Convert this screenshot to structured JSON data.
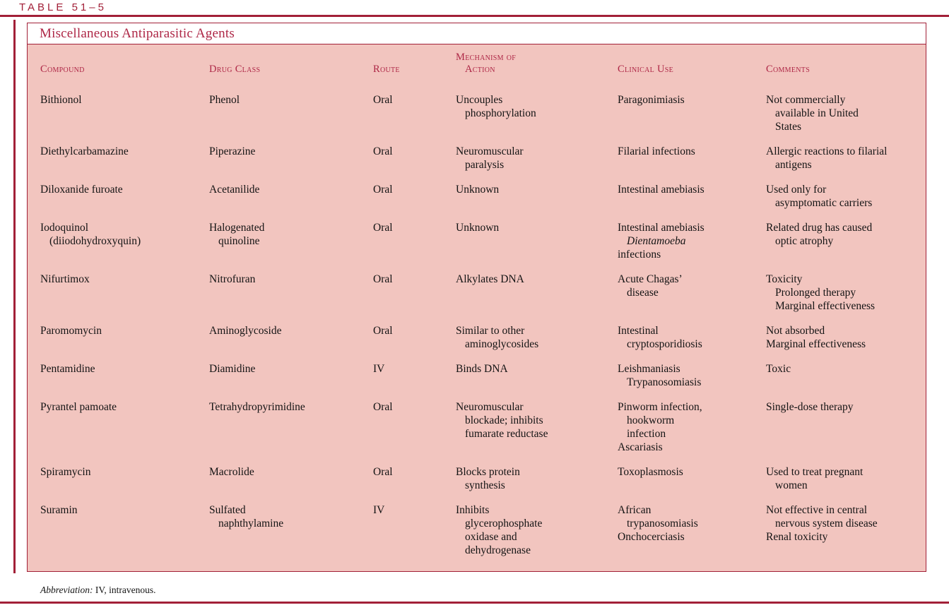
{
  "page": {
    "label": "TABLE 51–5"
  },
  "colors": {
    "accent": "#a22038",
    "header_text": "#ae2746",
    "table_background": "#f2c5bf",
    "body_text": "#141414",
    "page_background": "#ffffff"
  },
  "table": {
    "title": "Miscellaneous Antiparasitic Agents",
    "column_keys": [
      "compound",
      "drug-class",
      "route",
      "mechanism-of-action",
      "clinical-use",
      "comments"
    ],
    "columns": [
      {
        "lines": [
          "Compound"
        ]
      },
      {
        "lines": [
          "Drug Class"
        ]
      },
      {
        "lines": [
          "Route"
        ]
      },
      {
        "lines": [
          "Mechanism of",
          "Action"
        ]
      },
      {
        "lines": [
          "Clinical Use"
        ]
      },
      {
        "lines": [
          "Comments"
        ]
      }
    ],
    "rows": [
      {
        "cells": [
          [
            {
              "text": "Bithionol"
            }
          ],
          [
            {
              "text": "Phenol"
            }
          ],
          [
            {
              "text": "Oral"
            }
          ],
          [
            {
              "text": "Uncouples"
            },
            {
              "text": "phosphorylation",
              "indent": 1
            }
          ],
          [
            {
              "text": "Paragonimiasis"
            }
          ],
          [
            {
              "text": "Not commercially"
            },
            {
              "text": "available in United",
              "indent": 1
            },
            {
              "text": "States",
              "indent": 1
            }
          ]
        ]
      },
      {
        "cells": [
          [
            {
              "text": "Diethylcarbamazine"
            }
          ],
          [
            {
              "text": "Piperazine"
            }
          ],
          [
            {
              "text": "Oral"
            }
          ],
          [
            {
              "text": "Neuromuscular"
            },
            {
              "text": "paralysis",
              "indent": 1
            }
          ],
          [
            {
              "text": "Filarial infections"
            }
          ],
          [
            {
              "text": "Allergic reactions to filarial"
            },
            {
              "text": "antigens",
              "indent": 1
            }
          ]
        ]
      },
      {
        "cells": [
          [
            {
              "text": "Diloxanide furoate"
            }
          ],
          [
            {
              "text": "Acetanilide"
            }
          ],
          [
            {
              "text": "Oral"
            }
          ],
          [
            {
              "text": "Unknown"
            }
          ],
          [
            {
              "text": "Intestinal amebiasis"
            }
          ],
          [
            {
              "text": "Used only for"
            },
            {
              "text": "asymptomatic carriers",
              "indent": 1
            }
          ]
        ]
      },
      {
        "cells": [
          [
            {
              "text": "Iodoquinol"
            },
            {
              "text": "(diiodohydroxyquin)",
              "indent": 1
            }
          ],
          [
            {
              "text": "Halogenated"
            },
            {
              "text": "quinoline",
              "indent": 1
            }
          ],
          [
            {
              "text": "Oral"
            }
          ],
          [
            {
              "text": "Unknown"
            }
          ],
          [
            {
              "text": "Intestinal amebiasis"
            },
            {
              "text": "Dientamoeba",
              "indent": 1,
              "italic": true
            },
            {
              "text": "infections"
            }
          ],
          [
            {
              "text": "Related drug has caused"
            },
            {
              "text": "optic atrophy",
              "indent": 1
            }
          ]
        ]
      },
      {
        "cells": [
          [
            {
              "text": "Nifurtimox"
            }
          ],
          [
            {
              "text": "Nitrofuran"
            }
          ],
          [
            {
              "text": "Oral"
            }
          ],
          [
            {
              "text": "Alkylates DNA"
            }
          ],
          [
            {
              "text": "Acute Chagas’"
            },
            {
              "text": "disease",
              "indent": 1
            }
          ],
          [
            {
              "text": "Toxicity"
            },
            {
              "text": "Prolonged therapy",
              "indent": 1
            },
            {
              "text": "Marginal effectiveness",
              "indent": 1
            }
          ]
        ]
      },
      {
        "cells": [
          [
            {
              "text": "Paromomycin"
            }
          ],
          [
            {
              "text": "Aminoglycoside"
            }
          ],
          [
            {
              "text": "Oral"
            }
          ],
          [
            {
              "text": "Similar to other"
            },
            {
              "text": "aminoglycosides",
              "indent": 1
            }
          ],
          [
            {
              "text": "Intestinal"
            },
            {
              "text": "cryptosporidiosis",
              "indent": 1
            }
          ],
          [
            {
              "text": "Not absorbed"
            },
            {
              "text": "Marginal effectiveness"
            }
          ]
        ]
      },
      {
        "cells": [
          [
            {
              "text": "Pentamidine"
            }
          ],
          [
            {
              "text": "Diamidine"
            }
          ],
          [
            {
              "text": "IV"
            }
          ],
          [
            {
              "text": "Binds DNA"
            }
          ],
          [
            {
              "text": "Leishmaniasis"
            },
            {
              "text": "Trypanosomiasis",
              "indent": 1
            }
          ],
          [
            {
              "text": "Toxic"
            }
          ]
        ]
      },
      {
        "cells": [
          [
            {
              "text": "Pyrantel pamoate"
            }
          ],
          [
            {
              "text": "Tetrahydropyrimidine"
            }
          ],
          [
            {
              "text": "Oral"
            }
          ],
          [
            {
              "text": "Neuromuscular"
            },
            {
              "text": "blockade; inhibits",
              "indent": 1
            },
            {
              "text": "fumarate reductase",
              "indent": 1
            }
          ],
          [
            {
              "text": "Pinworm infection,"
            },
            {
              "text": "hookworm",
              "indent": 1
            },
            {
              "text": "infection",
              "indent": 1
            },
            {
              "text": "Ascariasis"
            }
          ],
          [
            {
              "text": "Single-dose therapy"
            }
          ]
        ]
      },
      {
        "cells": [
          [
            {
              "text": "Spiramycin"
            }
          ],
          [
            {
              "text": "Macrolide"
            }
          ],
          [
            {
              "text": "Oral"
            }
          ],
          [
            {
              "text": "Blocks protein"
            },
            {
              "text": "synthesis",
              "indent": 1
            }
          ],
          [
            {
              "text": "Toxoplasmosis"
            }
          ],
          [
            {
              "text": "Used to treat pregnant"
            },
            {
              "text": "women",
              "indent": 1
            }
          ]
        ]
      },
      {
        "cells": [
          [
            {
              "text": "Suramin"
            }
          ],
          [
            {
              "text": "Sulfated"
            },
            {
              "text": "naphthylamine",
              "indent": 1
            }
          ],
          [
            {
              "text": "IV"
            }
          ],
          [
            {
              "text": "Inhibits"
            },
            {
              "text": "glycerophosphate",
              "indent": 1
            },
            {
              "text": "oxidase and",
              "indent": 1
            },
            {
              "text": "dehydrogenase",
              "indent": 1
            }
          ],
          [
            {
              "text": "African"
            },
            {
              "text": "trypanosomiasis",
              "indent": 1
            },
            {
              "text": "Onchocerciasis"
            }
          ],
          [
            {
              "text": "Not effective in central"
            },
            {
              "text": "nervous system disease",
              "indent": 1
            },
            {
              "text": "Renal toxicity"
            }
          ]
        ]
      }
    ],
    "footnote": {
      "label": "Abbreviation:",
      "text": "IV, intravenous."
    }
  }
}
